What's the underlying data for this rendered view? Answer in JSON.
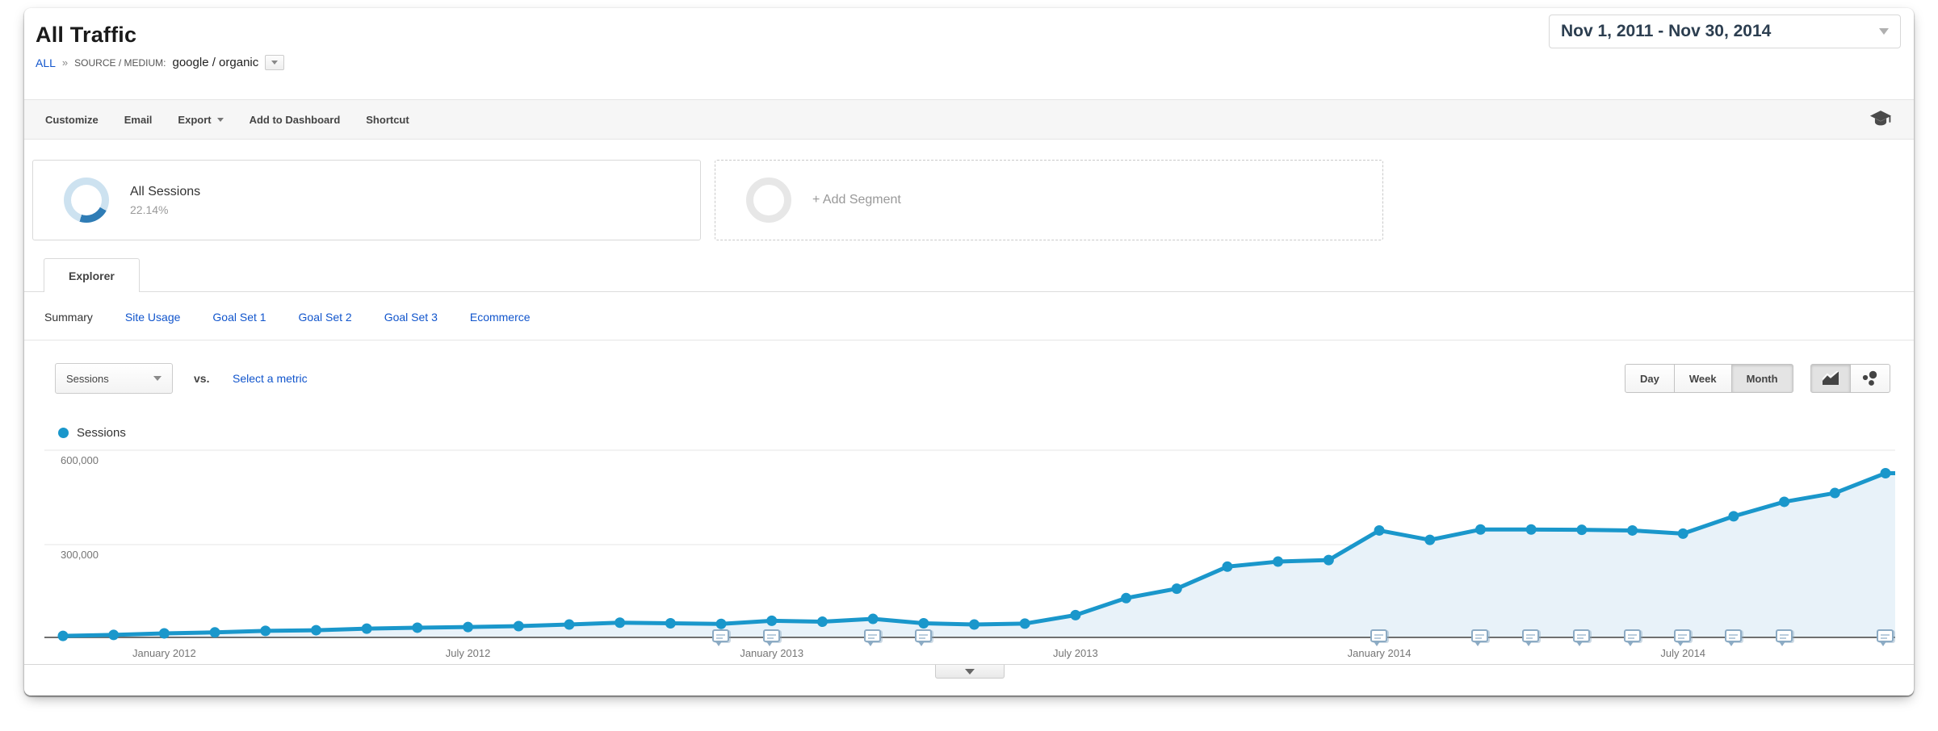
{
  "page": {
    "title": "All Traffic"
  },
  "date_range": {
    "label": "Nov 1, 2011 - Nov 30, 2014"
  },
  "breadcrumb": {
    "all": "ALL",
    "separator": "»",
    "dimension": "SOURCE / MEDIUM:",
    "value": "google / organic"
  },
  "toolbar": {
    "items": [
      "Customize",
      "Email",
      "Export",
      "Add to Dashboard",
      "Shortcut"
    ]
  },
  "segments": {
    "all_sessions": {
      "title": "All Sessions",
      "percent": "22.14%"
    },
    "add": {
      "label": "+ Add Segment"
    }
  },
  "tabs": {
    "explorer": "Explorer"
  },
  "subnav": {
    "items": [
      "Summary",
      "Site Usage",
      "Goal Set 1",
      "Goal Set 2",
      "Goal Set 3",
      "Ecommerce"
    ],
    "active": "Summary"
  },
  "controls": {
    "metric_selector": "Sessions",
    "vs": "vs.",
    "select_metric": "Select a metric",
    "granularity": [
      "Day",
      "Week",
      "Month"
    ],
    "granularity_active": "Month"
  },
  "legend": {
    "series": "Sessions",
    "color": "#1a97cb"
  },
  "chart_data": {
    "type": "line",
    "title": "Sessions by month",
    "series": [
      {
        "name": "Sessions",
        "color": "#1a97cb",
        "area_fill": "#e8f2f9",
        "values": [
          10000,
          13000,
          18000,
          21000,
          26000,
          28000,
          33000,
          36000,
          38000,
          41000,
          46000,
          52000,
          50000,
          48000,
          58000,
          55000,
          64000,
          50000,
          46000,
          49000,
          76000,
          130000,
          160000,
          230000,
          246000,
          251000,
          345000,
          315000,
          348000,
          348000,
          347000,
          345000,
          335000,
          390000,
          436000,
          464000,
          527000
        ]
      }
    ],
    "x": [
      "Nov 2011",
      "Dec 2011",
      "Jan 2012",
      "Feb 2012",
      "Mar 2012",
      "Apr 2012",
      "May 2012",
      "Jun 2012",
      "Jul 2012",
      "Aug 2012",
      "Sep 2012",
      "Oct 2012",
      "Nov 2012",
      "Dec 2012",
      "Jan 2013",
      "Feb 2013",
      "Mar 2013",
      "Apr 2013",
      "May 2013",
      "Jun 2013",
      "Jul 2013",
      "Aug 2013",
      "Sep 2013",
      "Oct 2013",
      "Nov 2013",
      "Dec 2013",
      "Jan 2014",
      "Feb 2014",
      "Mar 2014",
      "Apr 2014",
      "May 2014",
      "Jun 2014",
      "Jul 2014",
      "Aug 2014",
      "Sep 2014",
      "Oct 2014",
      "Nov 2014"
    ],
    "x_axis_labels": [
      {
        "index": 2,
        "label": "January 2012"
      },
      {
        "index": 8,
        "label": "July 2012"
      },
      {
        "index": 14,
        "label": "January 2013"
      },
      {
        "index": 20,
        "label": "July 2013"
      },
      {
        "index": 26,
        "label": "January 2014"
      },
      {
        "index": 32,
        "label": "July 2014"
      }
    ],
    "y_ticks": [
      {
        "value": 600000,
        "label": "600,000"
      },
      {
        "value": 300000,
        "label": "300,000"
      }
    ],
    "ylim": [
      0,
      620000
    ],
    "grid": "horizontal",
    "legend_position": "top-left",
    "annotation_month_indices": [
      13,
      14,
      16,
      17,
      26,
      28,
      29,
      30,
      31,
      32,
      33,
      34,
      36
    ]
  }
}
